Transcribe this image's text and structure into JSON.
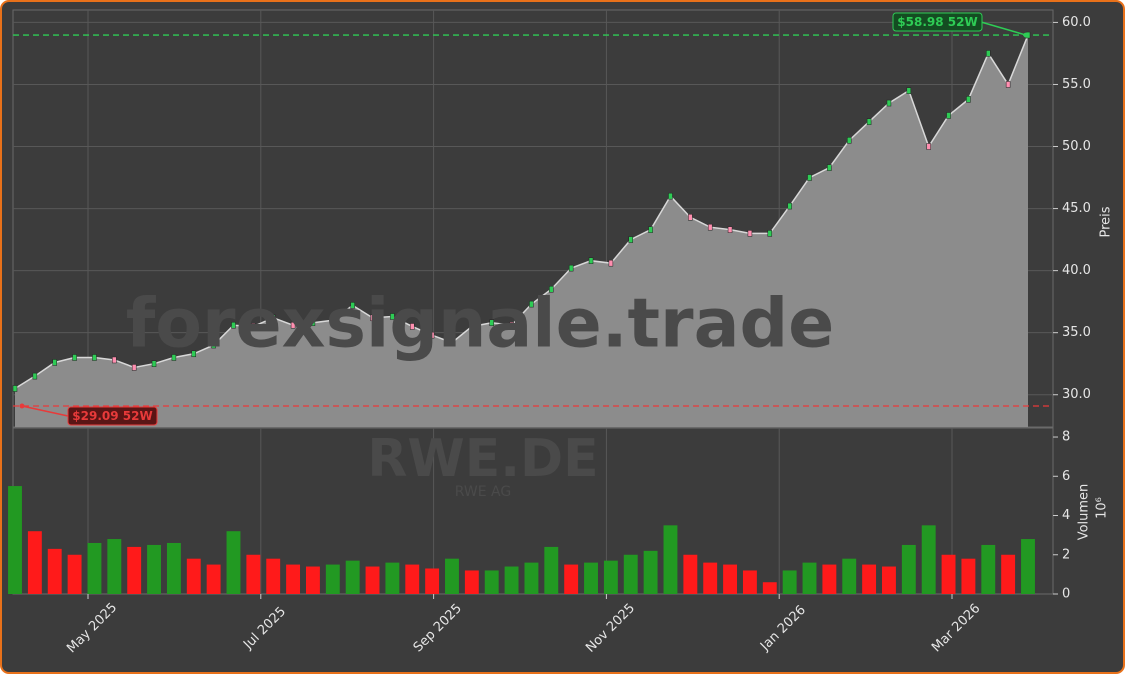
{
  "chart_data": [
    {
      "type": "line",
      "title": "RWE.DE",
      "subtitle": "RWE AG",
      "watermark": "forexsignale.trade",
      "ylabel": "Preis",
      "series": [
        {
          "name": "RWE.DE",
          "color": "#8c8c8c",
          "values": [
            30.5,
            31.5,
            32.6,
            33.0,
            33.0,
            32.8,
            32.2,
            32.5,
            33.0,
            33.3,
            34.0,
            35.6,
            35.5,
            36.2,
            35.6,
            35.8,
            36.0,
            37.2,
            36.2,
            36.3,
            35.5,
            34.8,
            34.2,
            35.5,
            35.8,
            35.6,
            37.3,
            38.5,
            40.2,
            40.8,
            40.6,
            42.5,
            43.3,
            46.0,
            44.3,
            43.5,
            43.3,
            43.0,
            43.0,
            45.2,
            47.5,
            48.3,
            50.5,
            52.0,
            53.5,
            54.5,
            50.0,
            52.5,
            53.8,
            57.5,
            55.0,
            58.98
          ]
        }
      ],
      "ylim": [
        27.4,
        61.0
      ],
      "yticks": [
        {
          "value": 30,
          "label": "30.0"
        },
        {
          "value": 35,
          "label": "35.0"
        },
        {
          "value": 40,
          "label": "40.0"
        },
        {
          "value": 45,
          "label": "45.0"
        },
        {
          "value": 50,
          "label": "50.0"
        },
        {
          "value": 55,
          "label": "55.0"
        },
        {
          "value": 60,
          "label": "60.0"
        }
      ],
      "grid": true,
      "annotations": [
        {
          "text": "$58.98 52W",
          "value": 58.98,
          "color": "#2ecc55"
        },
        {
          "text": "$29.09 52W",
          "value": 29.09,
          "color": "#e83a3a"
        }
      ]
    },
    {
      "type": "bar",
      "ylabel": "Volumen",
      "offset_label": "10⁶",
      "up_color": "#229922",
      "down_color": "#ff1a1a",
      "values": [
        5.5,
        3.2,
        2.3,
        2.0,
        2.6,
        2.8,
        2.4,
        2.5,
        2.6,
        1.8,
        1.5,
        3.2,
        2.0,
        1.8,
        1.5,
        1.4,
        1.5,
        1.7,
        1.4,
        1.6,
        1.5,
        1.3,
        1.8,
        1.2,
        1.2,
        1.4,
        1.6,
        2.4,
        1.5,
        1.6,
        1.7,
        2.0,
        2.2,
        3.5,
        2.0,
        1.6,
        1.5,
        1.2,
        0.6,
        1.2,
        1.6,
        1.5,
        1.8,
        1.5,
        1.4,
        2.5,
        3.5,
        2.0,
        1.8,
        2.5,
        2.0,
        2.8
      ],
      "ylim": [
        0,
        8.46
      ],
      "yticks": [
        0,
        2,
        4,
        6,
        8
      ],
      "xticks": [
        {
          "value": "2025-05",
          "label": "May 2025"
        },
        {
          "value": "2025-07",
          "label": "Jul 2025"
        },
        {
          "value": "2025-09",
          "label": "Sep 2025"
        },
        {
          "value": "2025-11",
          "label": "Nov 2025"
        },
        {
          "value": "2026-01",
          "label": "Jan 2026"
        },
        {
          "value": "2026-03",
          "label": "Mar 2026"
        }
      ]
    }
  ]
}
